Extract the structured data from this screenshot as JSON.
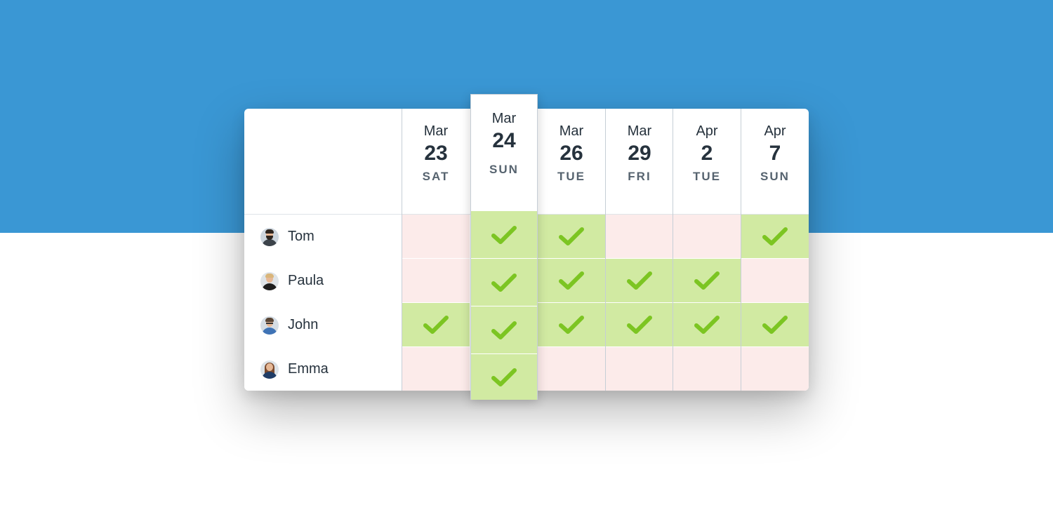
{
  "colors": {
    "top_band": "#3a97d4",
    "available": "#d1eaa2",
    "unavailable": "#fcebea",
    "check": "#7cc522"
  },
  "dates": [
    {
      "month": "Mar",
      "day": "23",
      "weekday": "SAT"
    },
    {
      "month": "Mar",
      "day": "24",
      "weekday": "SUN",
      "selected": true
    },
    {
      "month": "Mar",
      "day": "26",
      "weekday": "TUE"
    },
    {
      "month": "Mar",
      "day": "29",
      "weekday": "FRI"
    },
    {
      "month": "Apr",
      "day": "2",
      "weekday": "TUE"
    },
    {
      "month": "Apr",
      "day": "7",
      "weekday": "SUN"
    }
  ],
  "participants": [
    {
      "name": "Tom",
      "avatar": "avatar-bearded-man-icon",
      "availability": [
        false,
        true,
        true,
        false,
        false,
        true
      ]
    },
    {
      "name": "Paula",
      "avatar": "avatar-woman-icon",
      "availability": [
        false,
        true,
        true,
        true,
        true,
        false
      ]
    },
    {
      "name": "John",
      "avatar": "avatar-man-glasses-icon",
      "availability": [
        true,
        true,
        true,
        true,
        true,
        true
      ]
    },
    {
      "name": "Emma",
      "avatar": "avatar-woman-long-hair-icon",
      "availability": [
        false,
        true,
        false,
        false,
        false,
        false
      ]
    }
  ]
}
